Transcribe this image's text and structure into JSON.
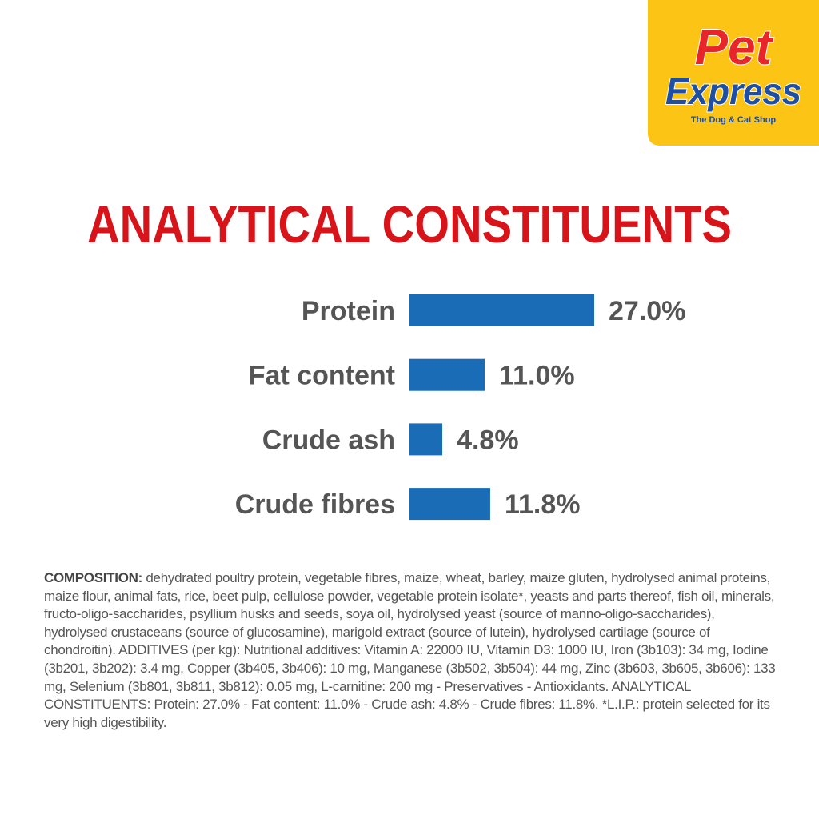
{
  "logo": {
    "name_top": "Pet",
    "name_bottom": "Express",
    "tagline": "The Dog & Cat Shop"
  },
  "chart_data": {
    "type": "hbar",
    "title": "ANALYTICAL CONSTITUENTS",
    "categories": [
      "Protein",
      "Fat content",
      "Crude ash",
      "Crude fibres"
    ],
    "values": [
      27.0,
      11.0,
      4.8,
      11.8
    ],
    "value_labels": [
      "27.0%",
      "11.0%",
      "4.8%",
      "11.8%"
    ],
    "color": "#1a6cb7"
  },
  "composition": {
    "label": "COMPOSITION:",
    "text": "dehydrated poultry protein, vegetable fibres, maize, wheat, barley, maize gluten, hydrolysed animal proteins, maize flour, animal fats, rice, beet pulp, cellulose powder, vegetable protein isolate*, yeasts and parts thereof, fish oil, minerals, fructo-oligo-saccharides, psyllium husks and seeds, soya oil, hydrolysed yeast (source of manno-oligo-saccharides), hydrolysed crustaceans (source of glucosamine), marigold extract (source of lutein), hydrolysed cartilage (source of chondroitin). ADDITIVES (per kg): Nutritional additives: Vitamin A: 22000 IU, Vitamin D3: 1000 IU, Iron (3b103): 34 mg, Iodine (3b201, 3b202): 3.4 mg, Copper (3b405, 3b406): 10 mg, Manganese (3b502, 3b504): 44 mg, Zinc (3b603, 3b605, 3b606): 133 mg, Selenium (3b801, 3b811, 3b812): 0.05 mg, L-carnitine: 200 mg - Preservatives - Antioxidants. ANALYTICAL CONSTITUENTS: Protein: 27.0% - Fat content: 11.0% - Crude ash: 4.8% - Crude fibres: 11.8%. *L.I.P.: protein selected for its very high digestibility."
  }
}
